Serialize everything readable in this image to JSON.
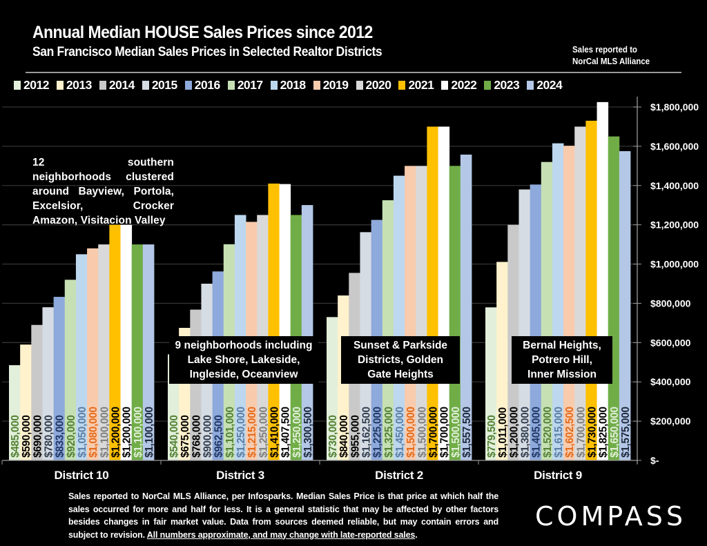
{
  "header": {
    "title": "Annual Median HOUSE Sales Prices since 2012",
    "subtitle": "San Francisco Median Sales Prices in Selected Realtor Districts",
    "source_note_line1": "Sales reported to",
    "source_note_line2": "NorCal MLS Alliance"
  },
  "annotations": {
    "district10": "12 southern neighborhoods clustered around Bayview, Portola, Excelsior, Crocker Amazon, Visitacion Valley",
    "district3": [
      "9 neighborhoods including",
      "Lake Shore, Lakeside,",
      "Ingleside, Oceanview"
    ],
    "district2": [
      "Sunset & Parkside",
      "Districts, Golden",
      "Gate Heights"
    ],
    "district9": [
      "Bernal Heights,",
      "Potrero Hill,",
      "Inner Mission"
    ]
  },
  "footer": {
    "disclaimer": "Sales reported to NorCal MLS Alliance, per Infosparks. Median Sales Price is that price at which half the sales occurred for more and half for less. It is a general statistic that may be affected by other factors besides changes in fair market value. Data from sources deemed reliable, but may contain errors and subject to revision. ",
    "disclaimer_underlined": "All numbers approximate, and may change with late-reported sales",
    "disclaimer_end": ".",
    "brand": "COMPASS"
  },
  "chart_data": {
    "type": "bar",
    "title": "Annual Median HOUSE Sales Prices since 2012",
    "subtitle": "San Francisco Median Sales Prices in Selected Realtor Districts",
    "xlabel": "",
    "ylabel": "",
    "ylim": [
      0,
      1800000
    ],
    "yticks": [
      0,
      200000,
      400000,
      600000,
      800000,
      1000000,
      1200000,
      1400000,
      1600000,
      1800000
    ],
    "ytick_labels": [
      "$-",
      "$200,000",
      "$400,000",
      "$600,000",
      "$800,000",
      "$1,000,000",
      "$1,200,000",
      "$1,400,000",
      "$1,600,000",
      "$1,800,000"
    ],
    "y_axis_side": "right",
    "grid": true,
    "legend_position": "top",
    "categories": [
      "District 10",
      "District 3",
      "District 2",
      "District 9"
    ],
    "series": [
      {
        "name": "2012",
        "color": "#e2efda",
        "label_color": "#548235",
        "values": [
          485000,
          540000,
          730000,
          779500
        ],
        "labels": [
          "$485,000",
          "$540,000",
          "$730,000",
          "$779,500"
        ]
      },
      {
        "name": "2013",
        "color": "#fff2cc",
        "label_color": "#000000",
        "values": [
          590000,
          675000,
          840000,
          1011000
        ],
        "labels": [
          "$590,000",
          "$675,000",
          "$840,000",
          "$1,011,000"
        ]
      },
      {
        "name": "2014",
        "color": "#c9c9c9",
        "label_color": "#000000",
        "values": [
          690000,
          768000,
          955000,
          1200000
        ],
        "labels": [
          "$690,000",
          "$768,000",
          "$955,000",
          "$1,200,000"
        ]
      },
      {
        "name": "2015",
        "color": "#d6dce4",
        "label_color": "#333f50",
        "values": [
          780000,
          900000,
          1162500,
          1380000
        ],
        "labels": [
          "$780,000",
          "$900,000",
          "$1,162,500",
          "$1,380,000"
        ]
      },
      {
        "name": "2016",
        "color": "#8ea9db",
        "label_color": "#203864",
        "values": [
          833000,
          962500,
          1225000,
          1405000
        ],
        "labels": [
          "$833,000",
          "$962,500",
          "$1,225,000",
          "$1,405,000"
        ]
      },
      {
        "name": "2017",
        "color": "#c6e0b4",
        "label_color": "#548235",
        "values": [
          920000,
          1101000,
          1325000,
          1520000
        ],
        "labels": [
          "$920,000",
          "$1,101,000",
          "$1,325,000",
          "$1,520,000"
        ]
      },
      {
        "name": "2018",
        "color": "#bdd7ee",
        "label_color": "#5b7fa6",
        "values": [
          1050000,
          1250000,
          1450000,
          1615000
        ],
        "labels": [
          "$1,050,000",
          "$1,250,000",
          "$1,450,000",
          "$1,615,000"
        ]
      },
      {
        "name": "2019",
        "color": "#f8cbad",
        "label_color": "#e46c1c",
        "values": [
          1080000,
          1215000,
          1500000,
          1602500
        ],
        "labels": [
          "$1,080,000",
          "$1,215,000",
          "$1,500,000",
          "$1,602,500"
        ]
      },
      {
        "name": "2020",
        "color": "#d9d9d9",
        "label_color": "#7f7f7f",
        "values": [
          1100000,
          1250000,
          1500000,
          1700000
        ],
        "labels": [
          "$1,100,000",
          "$1,250,000",
          "$1,500,000",
          "$1,700,000"
        ]
      },
      {
        "name": "2021",
        "color": "#ffc000",
        "label_color": "#000000",
        "values": [
          1200000,
          1410000,
          1700000,
          1730000
        ],
        "labels": [
          "$1,200,000",
          "$1,410,000",
          "$1,700,000",
          "$1,730,000"
        ]
      },
      {
        "name": "2022",
        "color": "#ffffff",
        "label_color": "#000000",
        "values": [
          1200000,
          1407500,
          1700000,
          1825000
        ],
        "labels": [
          "$1,200,000",
          "$1,407,500",
          "$1,700,000",
          "$1,825,000"
        ]
      },
      {
        "name": "2023",
        "color": "#70ad47",
        "label_color": "#e2efda",
        "values": [
          1100000,
          1250000,
          1500000,
          1650000
        ],
        "labels": [
          "$1,100,000",
          "$1,250,000",
          "$1,500,000",
          "$1,650,000"
        ]
      },
      {
        "name": "2024",
        "color": "#b4c7e7",
        "label_color": "#1f2a3c",
        "values": [
          1100000,
          1300500,
          1557500,
          1575000
        ],
        "labels": [
          "$1,100,000",
          "$1,300,500",
          "$1,557,500",
          "$1,575,000"
        ]
      }
    ]
  }
}
